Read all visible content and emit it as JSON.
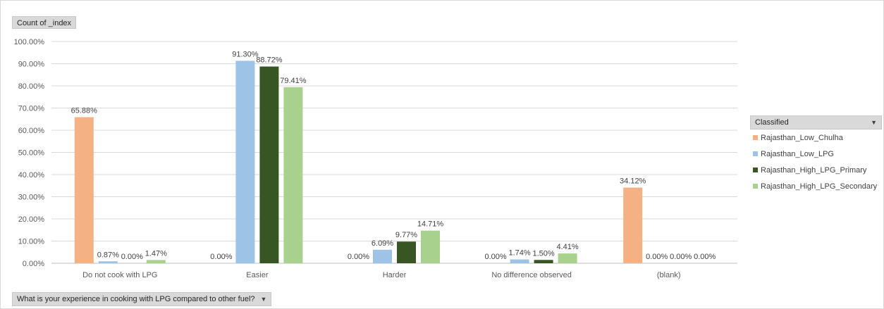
{
  "field_button": {
    "label": "Count of _index"
  },
  "axis_filter": {
    "label": "What is your experience in cooking with LPG compared to other fuel?",
    "arrow": "▼"
  },
  "legend": {
    "title": "Classified",
    "arrow": "▼",
    "items": [
      {
        "label": "Rajasthan_Low_Chulha",
        "color": "#f4b183"
      },
      {
        "label": "Rajasthan_Low_LPG",
        "color": "#9dc3e6"
      },
      {
        "label": "Rajasthan_High_LPG_Primary",
        "color": "#375623"
      },
      {
        "label": "Rajasthan_High_LPG_Secondary",
        "color": "#a9d18e"
      }
    ]
  },
  "chart_data": {
    "type": "bar",
    "title": "",
    "xlabel": "",
    "ylabel": "",
    "ylim": [
      0,
      100
    ],
    "y_ticks": [
      "0.00%",
      "10.00%",
      "20.00%",
      "30.00%",
      "40.00%",
      "50.00%",
      "60.00%",
      "70.00%",
      "80.00%",
      "90.00%",
      "100.00%"
    ],
    "grid": true,
    "legend_position": "right",
    "categories": [
      "Do not cook with LPG",
      "Easier",
      "Harder",
      "No difference observed",
      "(blank)"
    ],
    "series": [
      {
        "name": "Rajasthan_Low_Chulha",
        "color": "#f4b183",
        "values": [
          65.88,
          0.0,
          0.0,
          0.0,
          34.12
        ],
        "labels": [
          "65.88%",
          "0.00%",
          "0.00%",
          "0.00%",
          "34.12%"
        ]
      },
      {
        "name": "Rajasthan_Low_LPG",
        "color": "#9dc3e6",
        "values": [
          0.87,
          91.3,
          6.09,
          1.74,
          0.0
        ],
        "labels": [
          "0.87%",
          "91.30%",
          "6.09%",
          "1.74%",
          "0.00%"
        ]
      },
      {
        "name": "Rajasthan_High_LPG_Primary",
        "color": "#375623",
        "values": [
          0.0,
          88.72,
          9.77,
          1.5,
          0.0
        ],
        "labels": [
          "0.00%",
          "88.72%",
          "9.77%",
          "1.50%",
          "0.00%"
        ]
      },
      {
        "name": "Rajasthan_High_LPG_Secondary",
        "color": "#a9d18e",
        "values": [
          1.47,
          79.41,
          14.71,
          4.41,
          0.0
        ],
        "labels": [
          "1.47%",
          "79.41%",
          "14.71%",
          "4.41%",
          "0.00%"
        ]
      }
    ]
  }
}
